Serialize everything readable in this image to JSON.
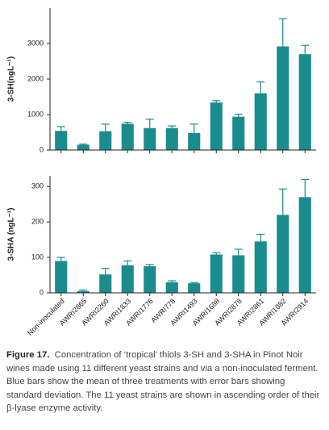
{
  "chart_data": [
    {
      "type": "bar",
      "ylabel": "3-SH(ngL⁻¹)",
      "categories": [
        null,
        null,
        null,
        null,
        null,
        null,
        null,
        null,
        null,
        null,
        null,
        null
      ],
      "series": [
        {
          "color": "#1b8c8e",
          "values": [
            540,
            150,
            530,
            740,
            620,
            620,
            480,
            1340,
            940,
            1600,
            2920,
            2700
          ],
          "errors": [
            120,
            20,
            200,
            40,
            250,
            60,
            250,
            50,
            70,
            320,
            780,
            250
          ]
        }
      ],
      "ylim": [
        0,
        4000
      ],
      "yticks": [
        0,
        1000,
        2000,
        3000
      ]
    },
    {
      "type": "bar",
      "ylabel": "3-SHA (ngL⁻¹)",
      "categories": [
        "Non-inoculated",
        "AWRI2865",
        "AWRI2260",
        "AWRI1833",
        "AWRI1776",
        "AWRI778",
        "AWRI1493",
        "AWRI1688",
        "AWRI2878",
        "AWRI2861",
        "AWRI1082",
        "AWRI2914"
      ],
      "series": [
        {
          "color": "#1b8c8e",
          "values": [
            90,
            5,
            52,
            78,
            75,
            30,
            27,
            108,
            106,
            145,
            220,
            270
          ],
          "errors": [
            10,
            3,
            17,
            12,
            5,
            4,
            2,
            5,
            17,
            20,
            73,
            50
          ]
        }
      ],
      "ylim": [
        0,
        330
      ],
      "yticks": [
        0,
        100,
        200,
        300
      ]
    }
  ],
  "caption": {
    "label": "Figure 17.",
    "text": "Concentration of ‘tropical’ thiols 3-SH and 3-SHA in Pinot Noir wines made using 11 different yeast strains and via a non-inoculated ferment. Blue bars show the mean of three treatments with error bars showing standard deviation. The 11 yeast strains are shown in ascending order of their β-lyase enzyme activity."
  }
}
